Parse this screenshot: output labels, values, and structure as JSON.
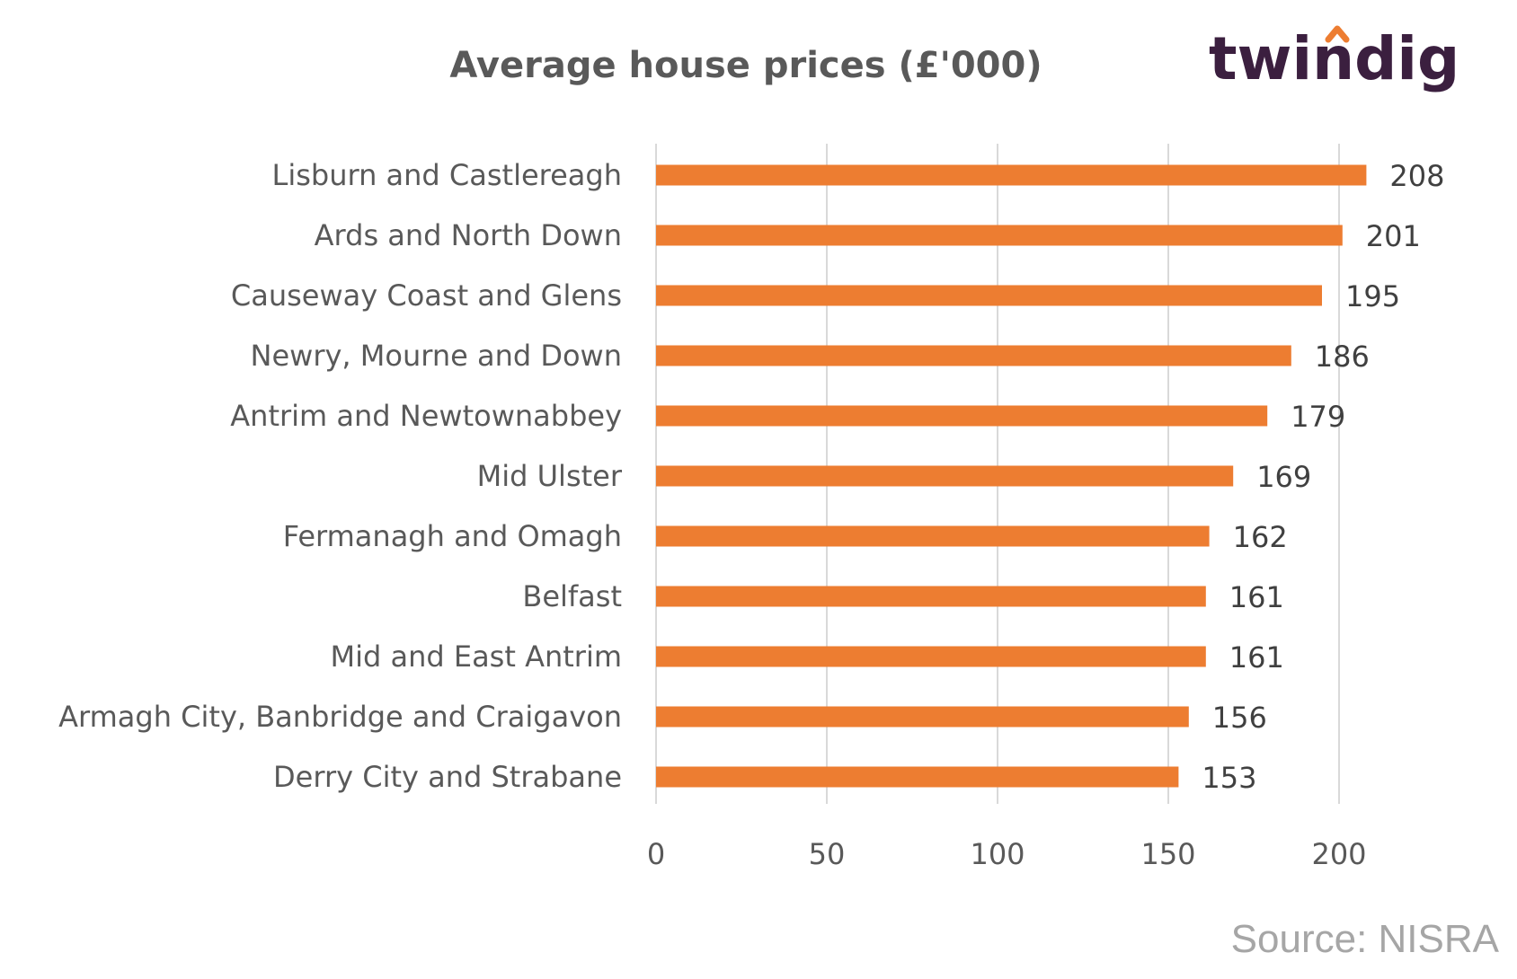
{
  "colors": {
    "bar": "#ed7d31",
    "grid": "#d9d9d9",
    "logo_text": "#3b1f3f",
    "logo_accent": "#ed7d31",
    "source_text": "#a6a6a6"
  },
  "logo": {
    "text": "twindig"
  },
  "source": {
    "text": "Source: NISRA"
  },
  "chart_data": {
    "type": "bar",
    "orientation": "horizontal",
    "title": "Average house prices (£'000)",
    "xlabel": "",
    "ylabel": "",
    "categories": [
      "Lisburn and Castlereagh",
      "Ards and North Down",
      "Causeway Coast and Glens",
      "Newry, Mourne and Down",
      "Antrim and Newtownabbey",
      "Mid Ulster",
      "Fermanagh and Omagh",
      "Belfast",
      "Mid and East Antrim",
      "Armagh City, Banbridge and Craigavon",
      "Derry City and Strabane"
    ],
    "values": [
      208,
      201,
      195,
      186,
      179,
      169,
      162,
      161,
      161,
      156,
      153
    ],
    "xlim": [
      0,
      230
    ],
    "xticks": [
      0,
      50,
      100,
      150,
      200
    ],
    "grid": true,
    "data_labels": true,
    "legend": "none"
  }
}
